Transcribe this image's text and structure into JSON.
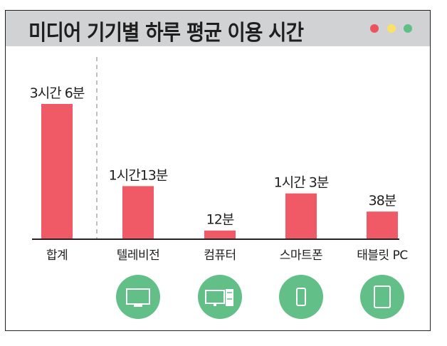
{
  "chart_data": {
    "type": "bar",
    "title": "미디어 기기별 하루 평균 이용 시간",
    "categories": [
      "합계",
      "텔레비전",
      "컴퓨터",
      "스마트폰",
      "태블릿 PC"
    ],
    "values": [
      186,
      73,
      12,
      63,
      38
    ],
    "unit": "minutes",
    "data_labels": [
      "3시간 6분",
      "1시간13분",
      "12분",
      "1시간 3분",
      "38분"
    ],
    "icons": [
      "",
      "tv-icon",
      "desktop-computer-icon",
      "smartphone-icon",
      "tablet-icon"
    ],
    "ylim": [
      0,
      200
    ],
    "grid": false,
    "colors": {
      "bar": "#f05a67",
      "icon_circle": "#62bf87",
      "header": "#d1d2d4",
      "dots": [
        "#e9545e",
        "#fbe06a",
        "#5fbf85"
      ]
    }
  }
}
